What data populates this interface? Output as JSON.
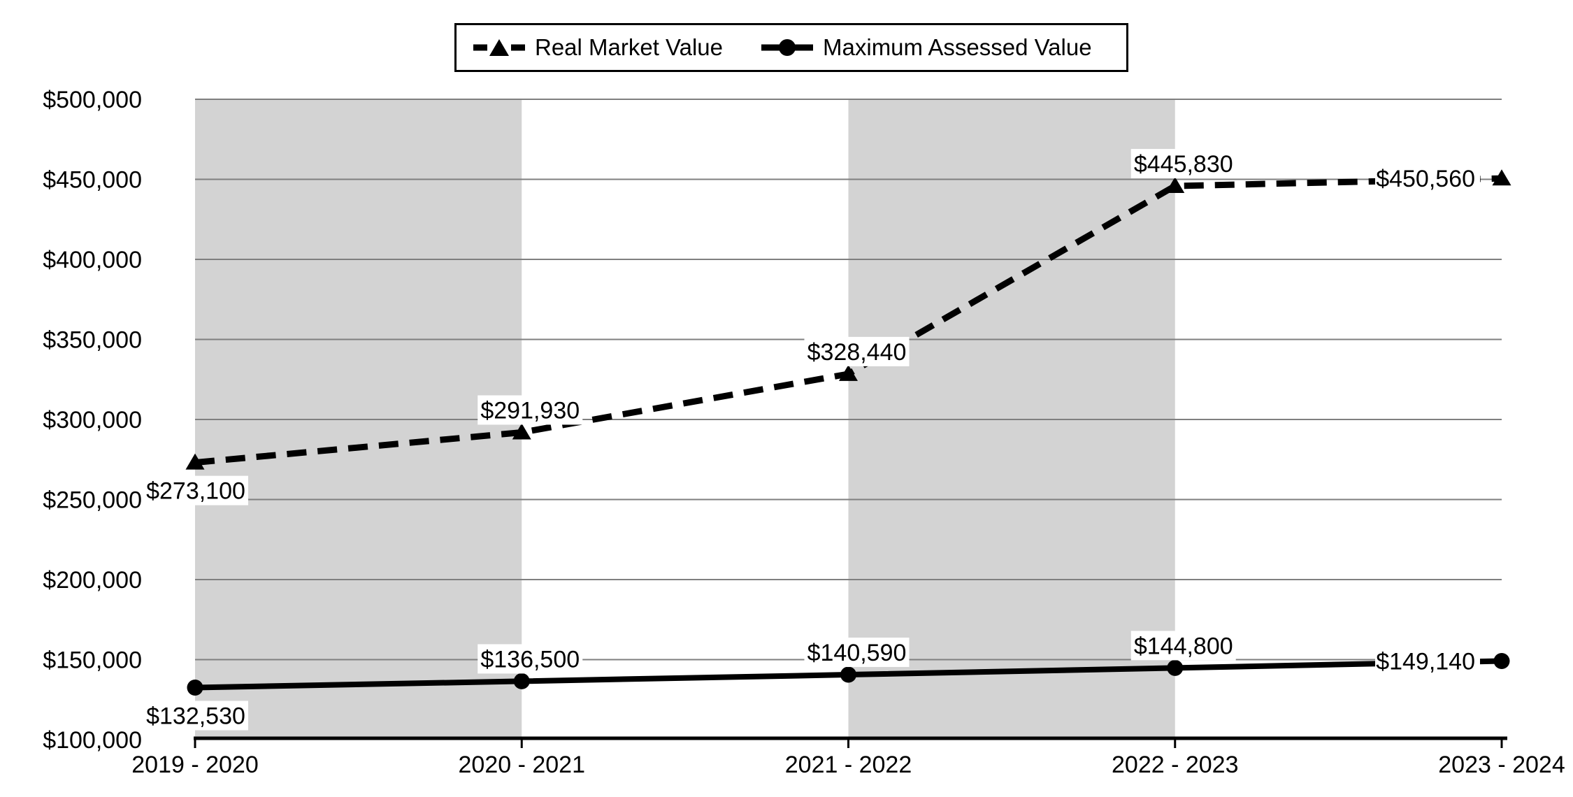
{
  "legend": {
    "items": [
      {
        "label": "Real Market Value",
        "marker": "dashed-line-with-triangle"
      },
      {
        "label": "Maximum Assessed Value",
        "marker": "solid-line-with-circle"
      }
    ]
  },
  "chart_data": {
    "type": "line",
    "title": "",
    "xlabel": "",
    "ylabel": "",
    "categories": [
      "2019 - 2020",
      "2020 - 2021",
      "2021 - 2022",
      "2022 - 2023",
      "2023 - 2024"
    ],
    "series": [
      {
        "name": "Real Market Value",
        "line_style": "dashed",
        "marker": "triangle",
        "values": [
          273100,
          291930,
          328440,
          445830,
          450560
        ],
        "labels": [
          "$273,100",
          "$291,930",
          "$328,440",
          "$445,830",
          "$450,560"
        ],
        "label_positions": [
          "below",
          "above",
          "above",
          "above",
          "left"
        ]
      },
      {
        "name": "Maximum Assessed Value",
        "line_style": "solid",
        "marker": "circle",
        "values": [
          132530,
          136500,
          140590,
          144800,
          149140
        ],
        "labels": [
          "$132,530",
          "$136,500",
          "$140,590",
          "$144,800",
          "$149,140"
        ],
        "label_positions": [
          "below",
          "above",
          "above",
          "above",
          "left"
        ]
      }
    ],
    "y_axis": {
      "min": 100000,
      "max": 500000,
      "step": 50000,
      "tick_labels": [
        "$100,000",
        "$150,000",
        "$200,000",
        "$250,000",
        "$300,000",
        "$350,000",
        "$400,000",
        "$450,000",
        "$500,000"
      ]
    },
    "shaded_band_intervals": [
      [
        0,
        1
      ],
      [
        2,
        3
      ]
    ],
    "grid": true,
    "legend_position": "top",
    "colors": {
      "band": "#d3d3d3",
      "gridline": "#7f7f7f",
      "series": "#000000",
      "axis": "#000000",
      "label_bg": "#ffffff",
      "text": "#000000"
    }
  }
}
